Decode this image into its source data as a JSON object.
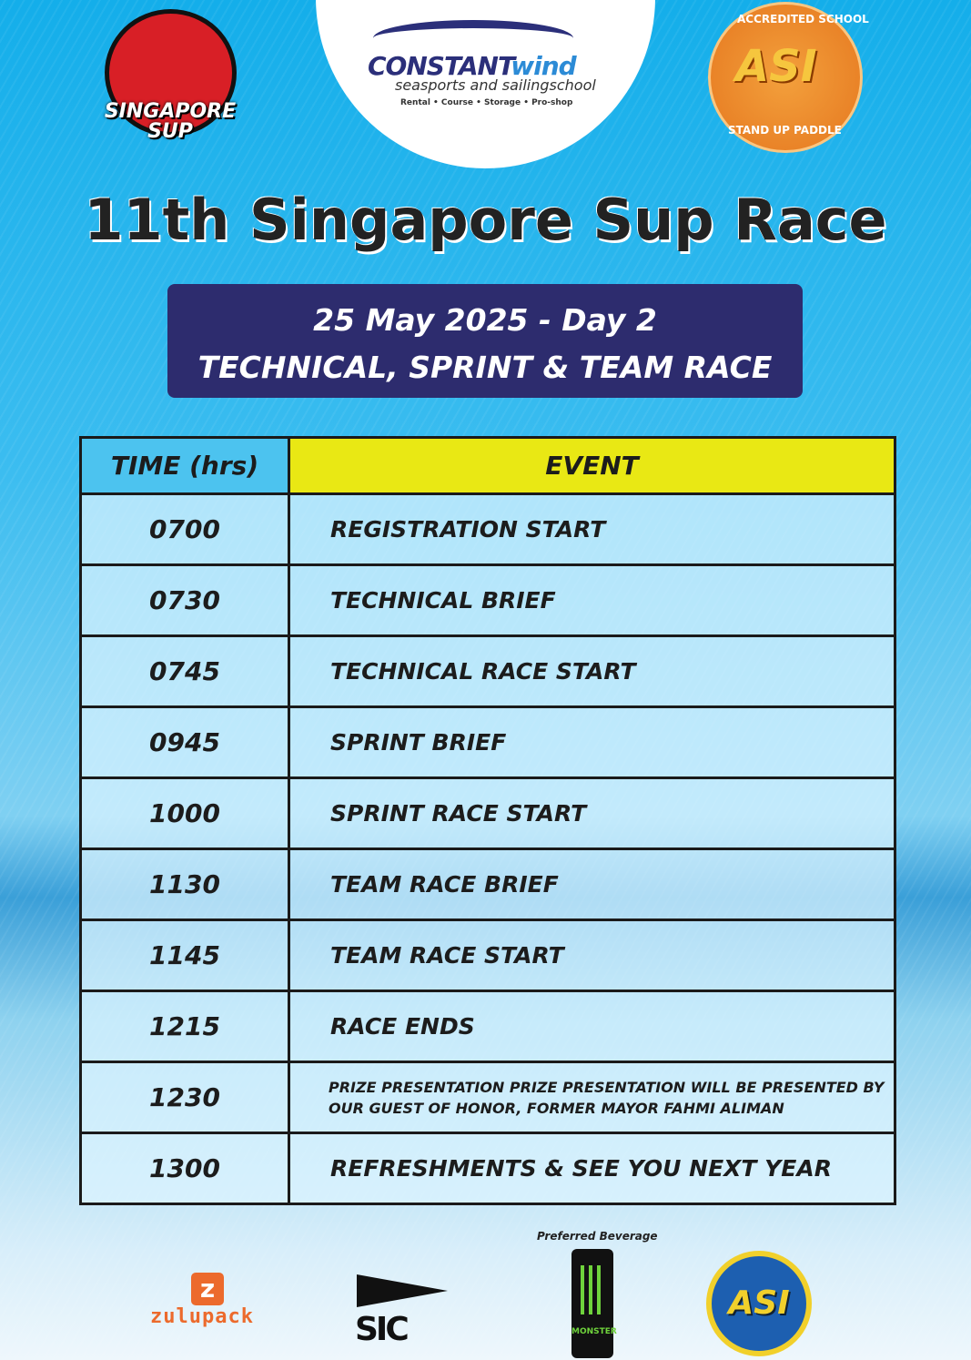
{
  "logos": {
    "singapore_sup": "SINGAPORE SUP",
    "constantwind": {
      "name_a": "CONSTANT",
      "name_b": "wind",
      "tagline": "seasports and sailingschool",
      "services": "Rental • Course • Storage • Pro-shop"
    },
    "asi_accredited": {
      "mark": "ASI",
      "ring_top": "ACCREDITED SCHOOL",
      "ring_bottom": "STAND UP PADDLE"
    },
    "sponsors": {
      "zulupack": "zulupack",
      "sic": "SIC",
      "preferred_beverage_label": "Preferred Beverage",
      "monster": "MONSTER",
      "asi_academy": "ASI"
    }
  },
  "title": "11th Singapore Sup Race",
  "banner": {
    "line1": "25 May 2025 - Day 2",
    "line2": "TECHNICAL, SPRINT & TEAM RACE"
  },
  "table": {
    "headers": {
      "time": "TIME (hrs)",
      "event": "EVENT"
    },
    "rows": [
      {
        "time": "0700",
        "event": "REGISTRATION START"
      },
      {
        "time": "0730",
        "event": "TECHNICAL BRIEF"
      },
      {
        "time": "0745",
        "event": "TECHNICAL RACE START"
      },
      {
        "time": "0945",
        "event": "SPRINT BRIEF"
      },
      {
        "time": "1000",
        "event": "SPRINT RACE START"
      },
      {
        "time": "1130",
        "event": "TEAM RACE BRIEF"
      },
      {
        "time": "1145",
        "event": "TEAM RACE START"
      },
      {
        "time": "1215",
        "event": "RACE ENDS"
      },
      {
        "time": "1230",
        "event": "PRIZE PRESENTATION PRIZE PRESENTATION  WILL BE PRESENTED BY OUR GUEST OF HONOR, FORMER MAYOR FAHMI ALIMAN"
      },
      {
        "time": "1300",
        "event": "REFRESHMENTS & SEE YOU NEXT YEAR"
      }
    ]
  },
  "colors": {
    "banner": "#2d2c6e",
    "time_header": "#4cc3ef",
    "event_header": "#e9e814"
  }
}
